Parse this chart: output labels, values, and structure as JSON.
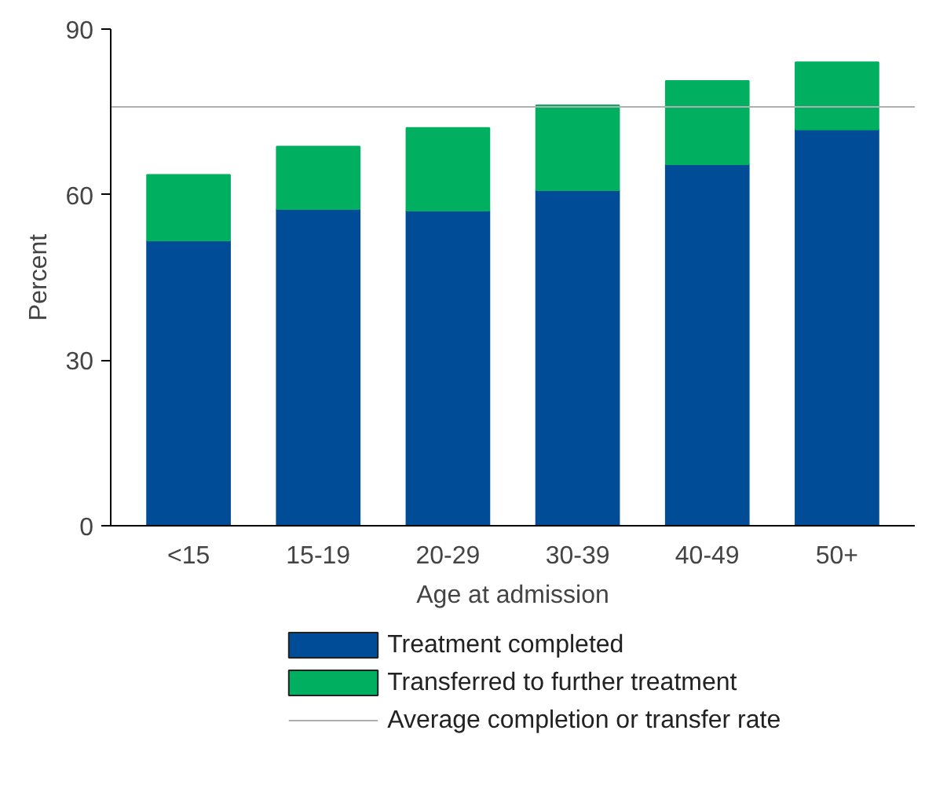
{
  "chart_data": {
    "type": "bar",
    "stacked": true,
    "xlabel": "Age at admission",
    "ylabel": "Percent",
    "categories": [
      "<15",
      "15-19",
      "20-29",
      "30-39",
      "40-49",
      "50+"
    ],
    "series": [
      {
        "name": "Treatment completed",
        "color": "#004c97",
        "values": [
          51.7,
          57.4,
          57.1,
          60.8,
          65.5,
          71.8
        ]
      },
      {
        "name": "Transferred to further treatment",
        "color": "#00b060",
        "values": [
          11.9,
          11.3,
          15.0,
          15.4,
          15.1,
          12.2
        ]
      }
    ],
    "ylim": [
      0,
      90
    ],
    "yticks": [
      0,
      30,
      60,
      90
    ],
    "grid": false,
    "legend": "bottom",
    "ref_lines": [
      {
        "axis": "y",
        "value": 75.9,
        "label": "Average completion or transfer rate",
        "color": "#b0b0b0"
      }
    ]
  }
}
